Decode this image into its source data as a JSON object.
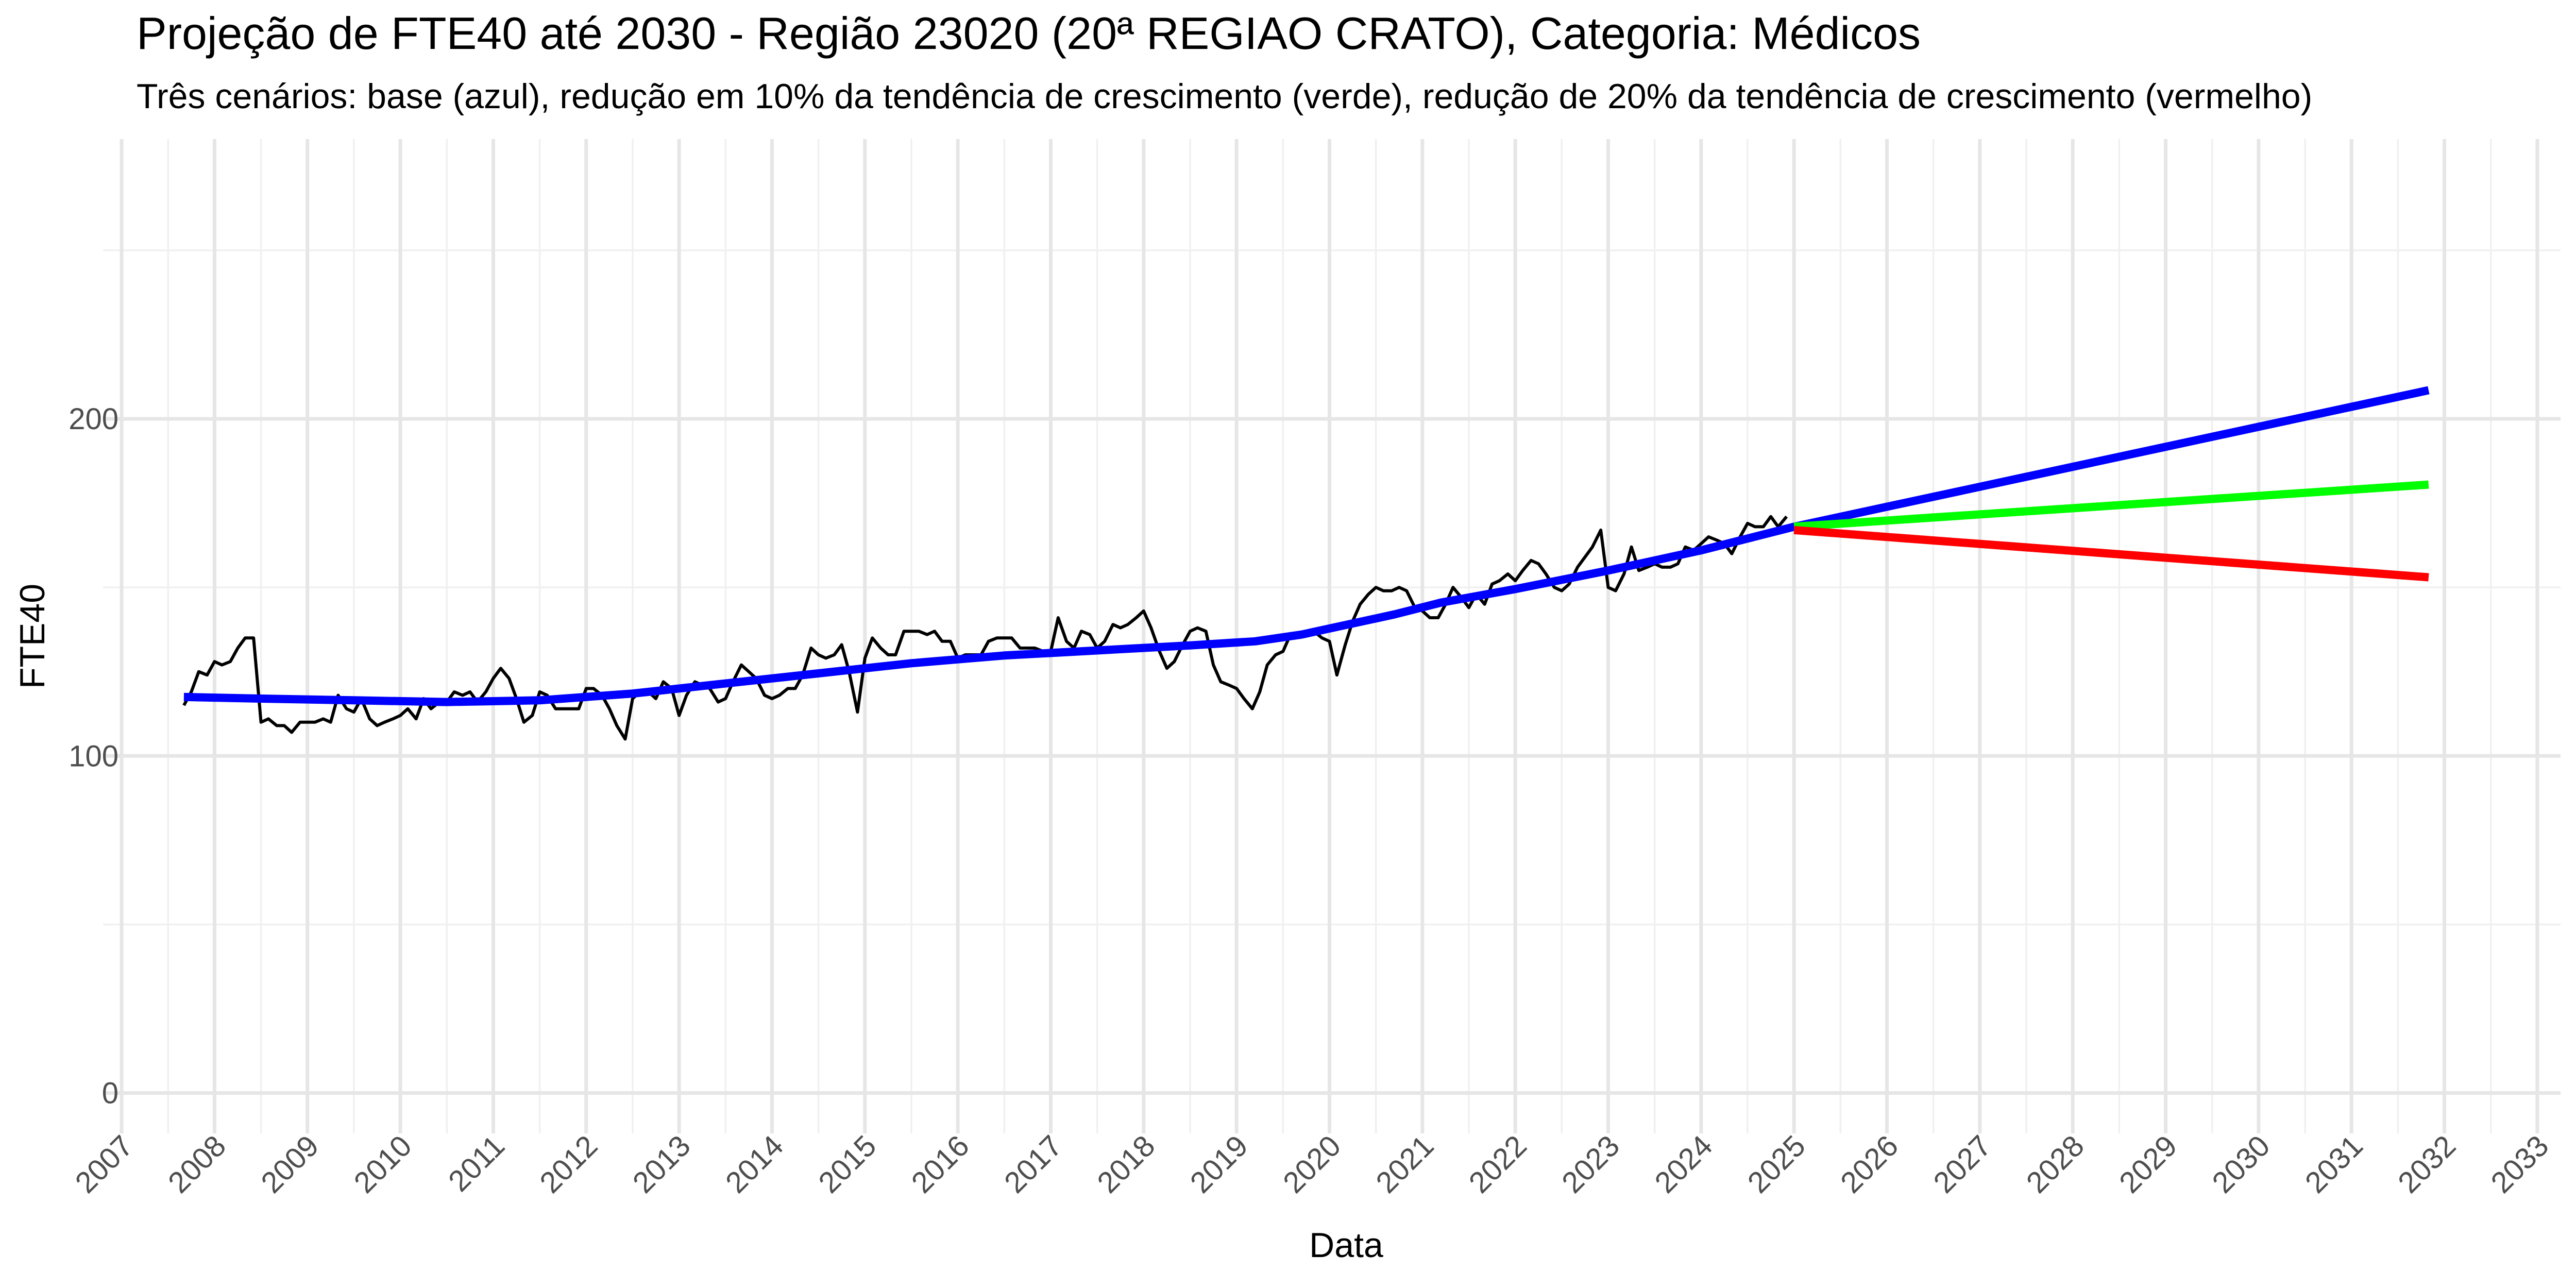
{
  "chart_data": {
    "type": "line",
    "title": "Projeção de FTE40 até 2030 - Região 23020 (20ª REGIAO CRATO), Categoria: Médicos",
    "subtitle": "Três cenários: base (azul), redução em 10% da tendência de crescimento (verde), redução de 20% da tendência de crescimento (vermelho)",
    "xlabel": "Data",
    "ylabel": "FTE40",
    "xlim": [
      2006.8,
      2033.25
    ],
    "ylim": [
      -12,
      283
    ],
    "x_ticks": [
      2007,
      2008,
      2009,
      2010,
      2011,
      2012,
      2013,
      2014,
      2015,
      2016,
      2017,
      2018,
      2019,
      2020,
      2021,
      2022,
      2023,
      2024,
      2025,
      2026,
      2027,
      2028,
      2029,
      2030,
      2031,
      2032,
      2033
    ],
    "x_tick_labels": [
      "2007",
      "2008",
      "2009",
      "2010",
      "2011",
      "2012",
      "2013",
      "2014",
      "2015",
      "2016",
      "2017",
      "2018",
      "2019",
      "2020",
      "2021",
      "2022",
      "2023",
      "2024",
      "2025",
      "2026",
      "2027",
      "2028",
      "2029",
      "2030",
      "2031",
      "2032",
      "2033"
    ],
    "y_ticks": [
      0,
      100,
      200
    ],
    "y_tick_labels": [
      "0",
      "100",
      "200"
    ],
    "y_minor_ticks": [
      50,
      150,
      250
    ],
    "grid": true,
    "legend": "none",
    "series": [
      {
        "color": "#000000",
        "points": [
          [
            2007.67,
            115
          ],
          [
            2007.75,
            119
          ],
          [
            2007.83,
            125
          ],
          [
            2007.92,
            124
          ],
          [
            2008.0,
            128
          ],
          [
            2008.08,
            127
          ],
          [
            2008.17,
            128
          ],
          [
            2008.25,
            132
          ],
          [
            2008.33,
            135
          ],
          [
            2008.42,
            135
          ],
          [
            2008.5,
            110
          ],
          [
            2008.58,
            111
          ],
          [
            2008.67,
            109
          ],
          [
            2008.75,
            109
          ],
          [
            2008.83,
            107
          ],
          [
            2008.92,
            110
          ],
          [
            2009.0,
            110
          ],
          [
            2009.08,
            110
          ],
          [
            2009.17,
            111
          ],
          [
            2009.25,
            110
          ],
          [
            2009.33,
            118
          ],
          [
            2009.42,
            114
          ],
          [
            2009.5,
            113
          ],
          [
            2009.58,
            117
          ],
          [
            2009.67,
            111
          ],
          [
            2009.75,
            109
          ],
          [
            2009.83,
            110
          ],
          [
            2009.92,
            111
          ],
          [
            2010.0,
            112
          ],
          [
            2010.08,
            114
          ],
          [
            2010.17,
            111
          ],
          [
            2010.25,
            117
          ],
          [
            2010.33,
            114
          ],
          [
            2010.42,
            116
          ],
          [
            2010.5,
            116
          ],
          [
            2010.58,
            119
          ],
          [
            2010.67,
            118
          ],
          [
            2010.75,
            119
          ],
          [
            2010.83,
            116
          ],
          [
            2010.92,
            119
          ],
          [
            2011.0,
            123
          ],
          [
            2011.08,
            126
          ],
          [
            2011.17,
            123
          ],
          [
            2011.25,
            117
          ],
          [
            2011.33,
            110
          ],
          [
            2011.42,
            112
          ],
          [
            2011.5,
            119
          ],
          [
            2011.58,
            118
          ],
          [
            2011.67,
            114
          ],
          [
            2011.75,
            114
          ],
          [
            2011.83,
            114
          ],
          [
            2011.92,
            114
          ],
          [
            2012.0,
            120
          ],
          [
            2012.08,
            120
          ],
          [
            2012.17,
            118
          ],
          [
            2012.25,
            114
          ],
          [
            2012.33,
            109
          ],
          [
            2012.42,
            105
          ],
          [
            2012.5,
            117
          ],
          [
            2012.58,
            119
          ],
          [
            2012.67,
            119
          ],
          [
            2012.75,
            117
          ],
          [
            2012.83,
            122
          ],
          [
            2012.92,
            120
          ],
          [
            2013.0,
            112
          ],
          [
            2013.08,
            118
          ],
          [
            2013.17,
            122
          ],
          [
            2013.25,
            121
          ],
          [
            2013.33,
            120
          ],
          [
            2013.42,
            116
          ],
          [
            2013.5,
            117
          ],
          [
            2013.58,
            122
          ],
          [
            2013.67,
            127
          ],
          [
            2013.75,
            125
          ],
          [
            2013.83,
            123
          ],
          [
            2013.92,
            118
          ],
          [
            2014.0,
            117
          ],
          [
            2014.08,
            118
          ],
          [
            2014.17,
            120
          ],
          [
            2014.25,
            120
          ],
          [
            2014.33,
            124
          ],
          [
            2014.42,
            132
          ],
          [
            2014.5,
            130
          ],
          [
            2014.58,
            129
          ],
          [
            2014.67,
            130
          ],
          [
            2014.75,
            133
          ],
          [
            2014.83,
            125
          ],
          [
            2014.92,
            113
          ],
          [
            2015.0,
            129
          ],
          [
            2015.08,
            135
          ],
          [
            2015.17,
            132
          ],
          [
            2015.25,
            130
          ],
          [
            2015.33,
            130
          ],
          [
            2015.42,
            137
          ],
          [
            2015.5,
            137
          ],
          [
            2015.58,
            137
          ],
          [
            2015.67,
            136
          ],
          [
            2015.75,
            137
          ],
          [
            2015.83,
            134
          ],
          [
            2015.92,
            134
          ],
          [
            2016.0,
            129
          ],
          [
            2016.08,
            130
          ],
          [
            2016.17,
            130
          ],
          [
            2016.25,
            130
          ],
          [
            2016.33,
            134
          ],
          [
            2016.42,
            135
          ],
          [
            2016.5,
            135
          ],
          [
            2016.58,
            135
          ],
          [
            2016.67,
            132
          ],
          [
            2016.75,
            132
          ],
          [
            2016.83,
            132
          ],
          [
            2016.92,
            131
          ],
          [
            2017.0,
            131
          ],
          [
            2017.08,
            141
          ],
          [
            2017.17,
            134
          ],
          [
            2017.25,
            132
          ],
          [
            2017.33,
            137
          ],
          [
            2017.42,
            136
          ],
          [
            2017.5,
            132
          ],
          [
            2017.58,
            134
          ],
          [
            2017.67,
            139
          ],
          [
            2017.75,
            138
          ],
          [
            2017.83,
            139
          ],
          [
            2017.92,
            141
          ],
          [
            2018.0,
            143
          ],
          [
            2018.08,
            138
          ],
          [
            2018.17,
            131
          ],
          [
            2018.25,
            126
          ],
          [
            2018.33,
            128
          ],
          [
            2018.42,
            133
          ],
          [
            2018.5,
            137
          ],
          [
            2018.58,
            138
          ],
          [
            2018.67,
            137
          ],
          [
            2018.75,
            127
          ],
          [
            2018.83,
            122
          ],
          [
            2018.92,
            121
          ],
          [
            2019.0,
            120
          ],
          [
            2019.08,
            117
          ],
          [
            2019.17,
            114
          ],
          [
            2019.25,
            119
          ],
          [
            2019.33,
            127
          ],
          [
            2019.42,
            130
          ],
          [
            2019.5,
            131
          ],
          [
            2019.58,
            136
          ],
          [
            2019.67,
            136
          ],
          [
            2019.75,
            136
          ],
          [
            2019.83,
            137
          ],
          [
            2019.92,
            135
          ],
          [
            2020.0,
            134
          ],
          [
            2020.08,
            124
          ],
          [
            2020.17,
            133
          ],
          [
            2020.25,
            140
          ],
          [
            2020.33,
            145
          ],
          [
            2020.42,
            148
          ],
          [
            2020.5,
            150
          ],
          [
            2020.58,
            149
          ],
          [
            2020.67,
            149
          ],
          [
            2020.75,
            150
          ],
          [
            2020.83,
            149
          ],
          [
            2020.92,
            144
          ],
          [
            2021.0,
            143
          ],
          [
            2021.08,
            141
          ],
          [
            2021.17,
            141
          ],
          [
            2021.25,
            145
          ],
          [
            2021.33,
            150
          ],
          [
            2021.42,
            147
          ],
          [
            2021.5,
            144
          ],
          [
            2021.58,
            148
          ],
          [
            2021.67,
            145
          ],
          [
            2021.75,
            151
          ],
          [
            2021.83,
            152
          ],
          [
            2021.92,
            154
          ],
          [
            2022.0,
            152
          ],
          [
            2022.08,
            155
          ],
          [
            2022.17,
            158
          ],
          [
            2022.25,
            157
          ],
          [
            2022.33,
            154
          ],
          [
            2022.42,
            150
          ],
          [
            2022.5,
            149
          ],
          [
            2022.58,
            151
          ],
          [
            2022.67,
            156
          ],
          [
            2022.75,
            159
          ],
          [
            2022.83,
            162
          ],
          [
            2022.92,
            167
          ],
          [
            2023.0,
            150
          ],
          [
            2023.08,
            149
          ],
          [
            2023.17,
            154
          ],
          [
            2023.25,
            162
          ],
          [
            2023.33,
            155
          ],
          [
            2023.42,
            156
          ],
          [
            2023.5,
            157
          ],
          [
            2023.58,
            156
          ],
          [
            2023.67,
            156
          ],
          [
            2023.75,
            157
          ],
          [
            2023.83,
            162
          ],
          [
            2023.92,
            161
          ],
          [
            2024.0,
            163
          ],
          [
            2024.08,
            165
          ],
          [
            2024.17,
            164
          ],
          [
            2024.25,
            163
          ],
          [
            2024.33,
            160
          ],
          [
            2024.42,
            165
          ],
          [
            2024.5,
            169
          ],
          [
            2024.58,
            168
          ],
          [
            2024.67,
            168
          ],
          [
            2024.75,
            171
          ],
          [
            2024.83,
            168
          ],
          [
            2024.92,
            171
          ]
        ]
      },
      {
        "color": "#0000ff",
        "points": [
          [
            2007.67,
            117.5
          ],
          [
            2008.5,
            117
          ],
          [
            2009.5,
            116.5
          ],
          [
            2010.5,
            116
          ],
          [
            2011.5,
            116.5
          ],
          [
            2012.5,
            118.5
          ],
          [
            2013.5,
            121.5
          ],
          [
            2014.5,
            124.5
          ],
          [
            2015.5,
            127.5
          ],
          [
            2016.5,
            129.8
          ],
          [
            2017.5,
            131.3
          ],
          [
            2018.5,
            132.8
          ],
          [
            2019.2,
            134
          ],
          [
            2019.7,
            136
          ],
          [
            2020.2,
            139
          ],
          [
            2020.7,
            142
          ],
          [
            2021.2,
            145.5
          ],
          [
            2022.0,
            149.5
          ],
          [
            2023.0,
            155
          ],
          [
            2024.0,
            161
          ],
          [
            2025.0,
            168
          ],
          [
            2031.83,
            208.5
          ]
        ]
      },
      {
        "color": "#00ff00",
        "points": [
          [
            2025.0,
            168
          ],
          [
            2031.83,
            180.5
          ]
        ]
      },
      {
        "color": "#ff0000",
        "points": [
          [
            2025.0,
            167
          ],
          [
            2031.83,
            153
          ]
        ]
      }
    ]
  }
}
